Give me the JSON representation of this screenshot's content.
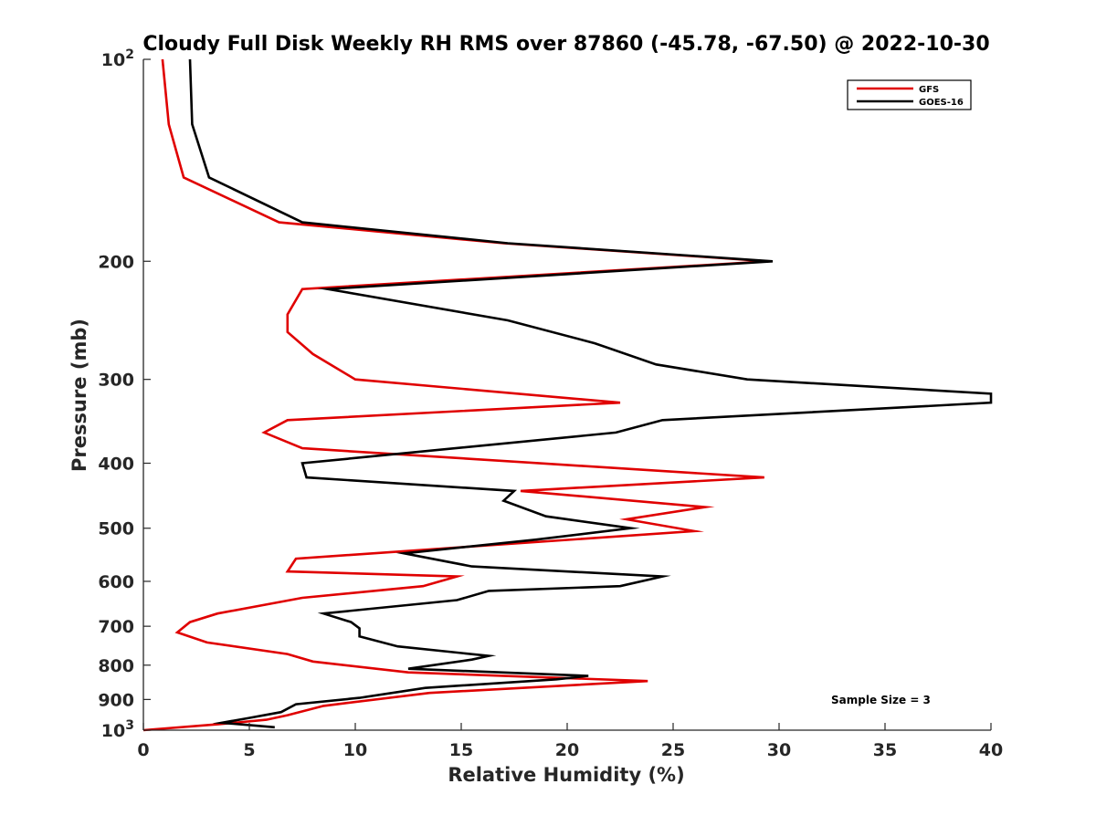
{
  "chart_data": {
    "type": "line",
    "title": "Cloudy Full Disk Weekly RH RMS over 87860 (-45.78, -67.50) @ 2022-10-30",
    "xlabel": "Relative Humidity (%)",
    "ylabel": "Pressure (mb)",
    "xlim": [
      0,
      40
    ],
    "ylim": [
      1000,
      100
    ],
    "yscale": "log",
    "x_ticks": [
      {
        "value": 0,
        "label": "0"
      },
      {
        "value": 5,
        "label": "5"
      },
      {
        "value": 10,
        "label": "10"
      },
      {
        "value": 15,
        "label": "15"
      },
      {
        "value": 20,
        "label": "20"
      },
      {
        "value": 25,
        "label": "25"
      },
      {
        "value": 30,
        "label": "30"
      },
      {
        "value": 35,
        "label": "35"
      },
      {
        "value": 40,
        "label": "40"
      }
    ],
    "y_ticks": [
      {
        "value": 100,
        "label": "10",
        "exp": "2"
      },
      {
        "value": 200,
        "label": "200"
      },
      {
        "value": 300,
        "label": "300"
      },
      {
        "value": 400,
        "label": "400"
      },
      {
        "value": 500,
        "label": "500"
      },
      {
        "value": 600,
        "label": "600"
      },
      {
        "value": 700,
        "label": "700"
      },
      {
        "value": 800,
        "label": "800"
      },
      {
        "value": 900,
        "label": "900"
      },
      {
        "value": 1000,
        "label": "10",
        "exp": "3"
      }
    ],
    "grid": false,
    "legend_position": "top-right",
    "annotation": "Sample Size = 3",
    "series": [
      {
        "name": "GFS",
        "color": "#e00000",
        "points": [
          [
            0.9,
            100
          ],
          [
            1.2,
            125
          ],
          [
            1.9,
            150
          ],
          [
            6.4,
            175
          ],
          [
            17,
            188
          ],
          [
            29.5,
            200
          ],
          [
            7.5,
            220
          ],
          [
            6.8,
            240
          ],
          [
            6.8,
            255
          ],
          [
            8.0,
            275
          ],
          [
            10,
            300
          ],
          [
            22.5,
            325
          ],
          [
            6.8,
            345
          ],
          [
            5.7,
            360
          ],
          [
            7.5,
            380
          ],
          [
            29.3,
            420
          ],
          [
            17.8,
            440
          ],
          [
            26.5,
            465
          ],
          [
            22.8,
            485
          ],
          [
            26,
            505
          ],
          [
            7.2,
            555
          ],
          [
            6.8,
            580
          ],
          [
            14.8,
            590
          ],
          [
            13.2,
            610
          ],
          [
            7.5,
            635
          ],
          [
            3.5,
            670
          ],
          [
            2.2,
            690
          ],
          [
            1.6,
            715
          ],
          [
            3.0,
            740
          ],
          [
            6.8,
            770
          ],
          [
            8.0,
            790
          ],
          [
            12.5,
            820
          ],
          [
            23.8,
            845
          ],
          [
            13.5,
            880
          ],
          [
            8.5,
            920
          ],
          [
            6.8,
            950
          ],
          [
            5.8,
            965
          ],
          [
            3.5,
            980
          ],
          [
            0,
            1000
          ]
        ]
      },
      {
        "name": "GOES-16",
        "color": "#000000",
        "points": [
          [
            2.2,
            100
          ],
          [
            2.3,
            125
          ],
          [
            3.1,
            150
          ],
          [
            7.5,
            175
          ],
          [
            17.2,
            188
          ],
          [
            29.7,
            200
          ],
          [
            8.7,
            220
          ],
          [
            17.2,
            245
          ],
          [
            21.3,
            265
          ],
          [
            24.2,
            285
          ],
          [
            28.5,
            300
          ],
          [
            40,
            315
          ],
          [
            40,
            325
          ],
          [
            24.5,
            345
          ],
          [
            22.3,
            360
          ],
          [
            7.5,
            400
          ],
          [
            7.7,
            420
          ],
          [
            17.5,
            440
          ],
          [
            17,
            455
          ],
          [
            19,
            480
          ],
          [
            23,
            500
          ],
          [
            18.5,
            520
          ],
          [
            12.3,
            545
          ],
          [
            15.5,
            570
          ],
          [
            24.5,
            590
          ],
          [
            22.5,
            610
          ],
          [
            16.3,
            620
          ],
          [
            14.8,
            640
          ],
          [
            8.5,
            670
          ],
          [
            9.8,
            690
          ],
          [
            10.2,
            705
          ],
          [
            10.2,
            725
          ],
          [
            12,
            750
          ],
          [
            16.3,
            775
          ],
          [
            15.5,
            785
          ],
          [
            12.5,
            810
          ],
          [
            21,
            830
          ],
          [
            19.5,
            840
          ],
          [
            13.3,
            865
          ],
          [
            10.2,
            895
          ],
          [
            7.2,
            915
          ],
          [
            6.5,
            940
          ],
          [
            4.9,
            960
          ],
          [
            3.7,
            975
          ],
          [
            6.2,
            990
          ]
        ]
      }
    ]
  }
}
